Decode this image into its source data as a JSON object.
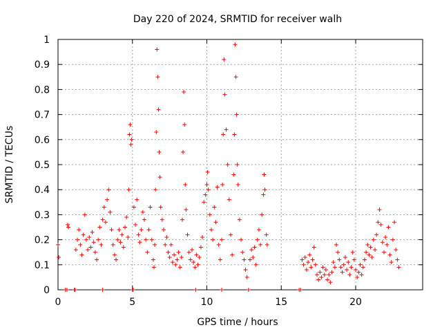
{
  "chart_data": {
    "type": "scatter",
    "title": "Day 220 of 2024, SRMTID for receiver walh",
    "xlabel": "GPS time / hours",
    "ylabel": "SRMTID / TECUs",
    "xlim": [
      0,
      24.5
    ],
    "ylim": [
      0,
      1
    ],
    "xticks": [
      0,
      5,
      10,
      15,
      20
    ],
    "xtick_labels": [
      "0",
      "5",
      "10",
      "15",
      "20"
    ],
    "yticks": [
      0,
      0.1,
      0.2,
      0.3,
      0.4,
      0.5,
      0.6,
      0.7,
      0.8,
      0.9,
      1
    ],
    "ytick_labels": [
      "0",
      "0.1",
      "0.2",
      "0.3",
      "0.4",
      "0.5",
      "0.6",
      "0.7",
      "0.8",
      "0.9",
      "1"
    ],
    "grid": true,
    "marker": "+",
    "color": "#ff0000",
    "series": [
      {
        "name": "SRMTID",
        "points": [
          [
            0.0,
            0.18
          ],
          [
            0.05,
            0.13
          ],
          [
            0.5,
            0.0
          ],
          [
            0.6,
            0.0
          ],
          [
            0.65,
            0.26
          ],
          [
            0.7,
            0.25
          ],
          [
            1.1,
            0.0
          ],
          [
            1.15,
            0.0
          ],
          [
            1.2,
            0.16
          ],
          [
            1.3,
            0.2
          ],
          [
            1.4,
            0.24
          ],
          [
            1.5,
            0.18
          ],
          [
            1.6,
            0.14
          ],
          [
            1.7,
            0.22
          ],
          [
            1.8,
            0.3
          ],
          [
            1.9,
            0.2
          ],
          [
            2.0,
            0.16
          ],
          [
            2.1,
            0.21
          ],
          [
            2.2,
            0.17
          ],
          [
            2.3,
            0.23
          ],
          [
            2.4,
            0.19
          ],
          [
            2.5,
            0.15
          ],
          [
            2.6,
            0.12
          ],
          [
            2.7,
            0.2
          ],
          [
            2.8,
            0.25
          ],
          [
            2.9,
            0.18
          ],
          [
            3.0,
            0.28
          ],
          [
            3.0,
            0.0
          ],
          [
            3.1,
            0.33
          ],
          [
            3.2,
            0.27
          ],
          [
            3.3,
            0.36
          ],
          [
            3.4,
            0.4
          ],
          [
            3.5,
            0.31
          ],
          [
            3.6,
            0.24
          ],
          [
            3.7,
            0.18
          ],
          [
            3.8,
            0.14
          ],
          [
            3.9,
            0.12
          ],
          [
            4.0,
            0.2
          ],
          [
            4.1,
            0.24
          ],
          [
            4.2,
            0.19
          ],
          [
            4.3,
            0.22
          ],
          [
            4.4,
            0.17
          ],
          [
            4.5,
            0.25
          ],
          [
            4.6,
            0.29
          ],
          [
            4.7,
            0.21
          ],
          [
            4.75,
            0.4
          ],
          [
            4.8,
            0.62
          ],
          [
            4.85,
            0.66
          ],
          [
            4.9,
            0.58
          ],
          [
            4.95,
            0.6
          ],
          [
            5.0,
            0.0
          ],
          [
            5.05,
            0.0
          ],
          [
            5.1,
            0.33
          ],
          [
            5.2,
            0.26
          ],
          [
            5.3,
            0.36
          ],
          [
            5.4,
            0.22
          ],
          [
            5.5,
            0.19
          ],
          [
            5.6,
            0.24
          ],
          [
            5.7,
            0.31
          ],
          [
            5.8,
            0.28
          ],
          [
            5.9,
            0.2
          ],
          [
            6.0,
            0.15
          ],
          [
            6.1,
            0.24
          ],
          [
            6.2,
            0.33
          ],
          [
            6.3,
            0.2
          ],
          [
            6.4,
            0.12
          ],
          [
            6.45,
            0.09
          ],
          [
            6.5,
            0.18
          ],
          [
            6.55,
            0.4
          ],
          [
            6.6,
            0.63
          ],
          [
            6.65,
            0.96
          ],
          [
            6.7,
            0.85
          ],
          [
            6.75,
            0.72
          ],
          [
            6.8,
            0.55
          ],
          [
            6.85,
            0.45
          ],
          [
            6.9,
            0.33
          ],
          [
            7.0,
            0.28
          ],
          [
            7.1,
            0.24
          ],
          [
            7.2,
            0.18
          ],
          [
            7.3,
            0.21
          ],
          [
            7.4,
            0.15
          ],
          [
            7.5,
            0.13
          ],
          [
            7.6,
            0.18
          ],
          [
            7.7,
            0.11
          ],
          [
            7.8,
            0.14
          ],
          [
            7.9,
            0.1
          ],
          [
            8.0,
            0.12
          ],
          [
            8.1,
            0.15
          ],
          [
            8.2,
            0.09
          ],
          [
            8.3,
            0.13
          ],
          [
            8.35,
            0.28
          ],
          [
            8.4,
            0.55
          ],
          [
            8.45,
            0.79
          ],
          [
            8.5,
            0.66
          ],
          [
            8.55,
            0.42
          ],
          [
            8.6,
            0.32
          ],
          [
            8.7,
            0.22
          ],
          [
            8.8,
            0.15
          ],
          [
            8.9,
            0.12
          ],
          [
            9.0,
            0.16
          ],
          [
            9.1,
            0.11
          ],
          [
            9.2,
            0.09
          ],
          [
            9.25,
            0.0
          ],
          [
            9.3,
            0.14
          ],
          [
            9.4,
            0.1
          ],
          [
            9.5,
            0.13
          ],
          [
            9.6,
            0.17
          ],
          [
            9.7,
            0.21
          ],
          [
            9.8,
            0.35
          ],
          [
            9.9,
            0.38
          ],
          [
            10.0,
            0.42
          ],
          [
            10.05,
            0.47
          ],
          [
            10.1,
            0.4
          ],
          [
            10.2,
            0.3
          ],
          [
            10.3,
            0.24
          ],
          [
            10.4,
            0.2
          ],
          [
            10.5,
            0.33
          ],
          [
            10.6,
            0.27
          ],
          [
            10.7,
            0.41
          ],
          [
            10.8,
            0.18
          ],
          [
            10.9,
            0.12
          ],
          [
            11.0,
            0.0
          ],
          [
            11.0,
            0.2
          ],
          [
            11.05,
            0.42
          ],
          [
            11.1,
            0.62
          ],
          [
            11.15,
            0.92
          ],
          [
            11.2,
            0.78
          ],
          [
            11.3,
            0.64
          ],
          [
            11.4,
            0.5
          ],
          [
            11.5,
            0.36
          ],
          [
            11.6,
            0.22
          ],
          [
            11.7,
            0.14
          ],
          [
            11.8,
            0.46
          ],
          [
            11.85,
            0.62
          ],
          [
            11.9,
            0.98
          ],
          [
            11.95,
            0.85
          ],
          [
            12.0,
            0.7
          ],
          [
            12.05,
            0.5
          ],
          [
            12.1,
            0.42
          ],
          [
            12.2,
            0.28
          ],
          [
            12.3,
            0.2
          ],
          [
            12.4,
            0.15
          ],
          [
            12.5,
            0.12
          ],
          [
            12.6,
            0.08
          ],
          [
            12.7,
            0.05
          ],
          [
            12.8,
            0.0
          ],
          [
            12.9,
            0.12
          ],
          [
            13.0,
            0.16
          ],
          [
            13.1,
            0.13
          ],
          [
            13.2,
            0.17
          ],
          [
            13.3,
            0.1
          ],
          [
            13.4,
            0.2
          ],
          [
            13.5,
            0.24
          ],
          [
            13.6,
            0.18
          ],
          [
            13.7,
            0.3
          ],
          [
            13.8,
            0.38
          ],
          [
            13.85,
            0.46
          ],
          [
            13.9,
            0.4
          ],
          [
            14.0,
            0.22
          ],
          [
            14.05,
            0.18
          ],
          [
            16.2,
            0.0
          ],
          [
            16.3,
            0.0
          ],
          [
            16.4,
            0.12
          ],
          [
            16.5,
            0.1
          ],
          [
            16.6,
            0.13
          ],
          [
            16.7,
            0.08
          ],
          [
            16.8,
            0.11
          ],
          [
            16.9,
            0.14
          ],
          [
            17.0,
            0.09
          ],
          [
            17.1,
            0.12
          ],
          [
            17.2,
            0.17
          ],
          [
            17.3,
            0.1
          ],
          [
            17.4,
            0.06
          ],
          [
            17.5,
            0.04
          ],
          [
            17.6,
            0.07
          ],
          [
            17.7,
            0.05
          ],
          [
            17.8,
            0.09
          ],
          [
            17.9,
            0.06
          ],
          [
            18.0,
            0.08
          ],
          [
            18.1,
            0.04
          ],
          [
            18.2,
            0.06
          ],
          [
            18.3,
            0.03
          ],
          [
            18.4,
            0.07
          ],
          [
            18.5,
            0.11
          ],
          [
            18.6,
            0.09
          ],
          [
            18.7,
            0.18
          ],
          [
            18.8,
            0.15
          ],
          [
            18.9,
            0.12
          ],
          [
            19.0,
            0.09
          ],
          [
            19.1,
            0.07
          ],
          [
            19.2,
            0.1
          ],
          [
            19.3,
            0.13
          ],
          [
            19.4,
            0.08
          ],
          [
            19.5,
            0.11
          ],
          [
            19.6,
            0.06
          ],
          [
            19.7,
            0.09
          ],
          [
            19.8,
            0.15
          ],
          [
            19.9,
            0.12
          ],
          [
            20.0,
            0.08
          ],
          [
            20.1,
            0.05
          ],
          [
            20.2,
            0.07
          ],
          [
            20.3,
            0.1
          ],
          [
            20.4,
            0.06
          ],
          [
            20.5,
            0.09
          ],
          [
            20.6,
            0.12
          ],
          [
            20.7,
            0.15
          ],
          [
            20.8,
            0.18
          ],
          [
            20.9,
            0.14
          ],
          [
            21.0,
            0.17
          ],
          [
            21.1,
            0.13
          ],
          [
            21.2,
            0.2
          ],
          [
            21.3,
            0.16
          ],
          [
            21.4,
            0.22
          ],
          [
            21.5,
            0.27
          ],
          [
            21.6,
            0.32
          ],
          [
            21.7,
            0.26
          ],
          [
            21.8,
            0.19
          ],
          [
            21.9,
            0.15
          ],
          [
            22.0,
            0.21
          ],
          [
            22.1,
            0.18
          ],
          [
            22.2,
            0.25
          ],
          [
            22.3,
            0.14
          ],
          [
            22.4,
            0.11
          ],
          [
            22.5,
            0.2
          ],
          [
            22.6,
            0.27
          ],
          [
            22.7,
            0.16
          ],
          [
            22.8,
            0.12
          ],
          [
            22.9,
            0.09
          ]
        ]
      }
    ]
  }
}
